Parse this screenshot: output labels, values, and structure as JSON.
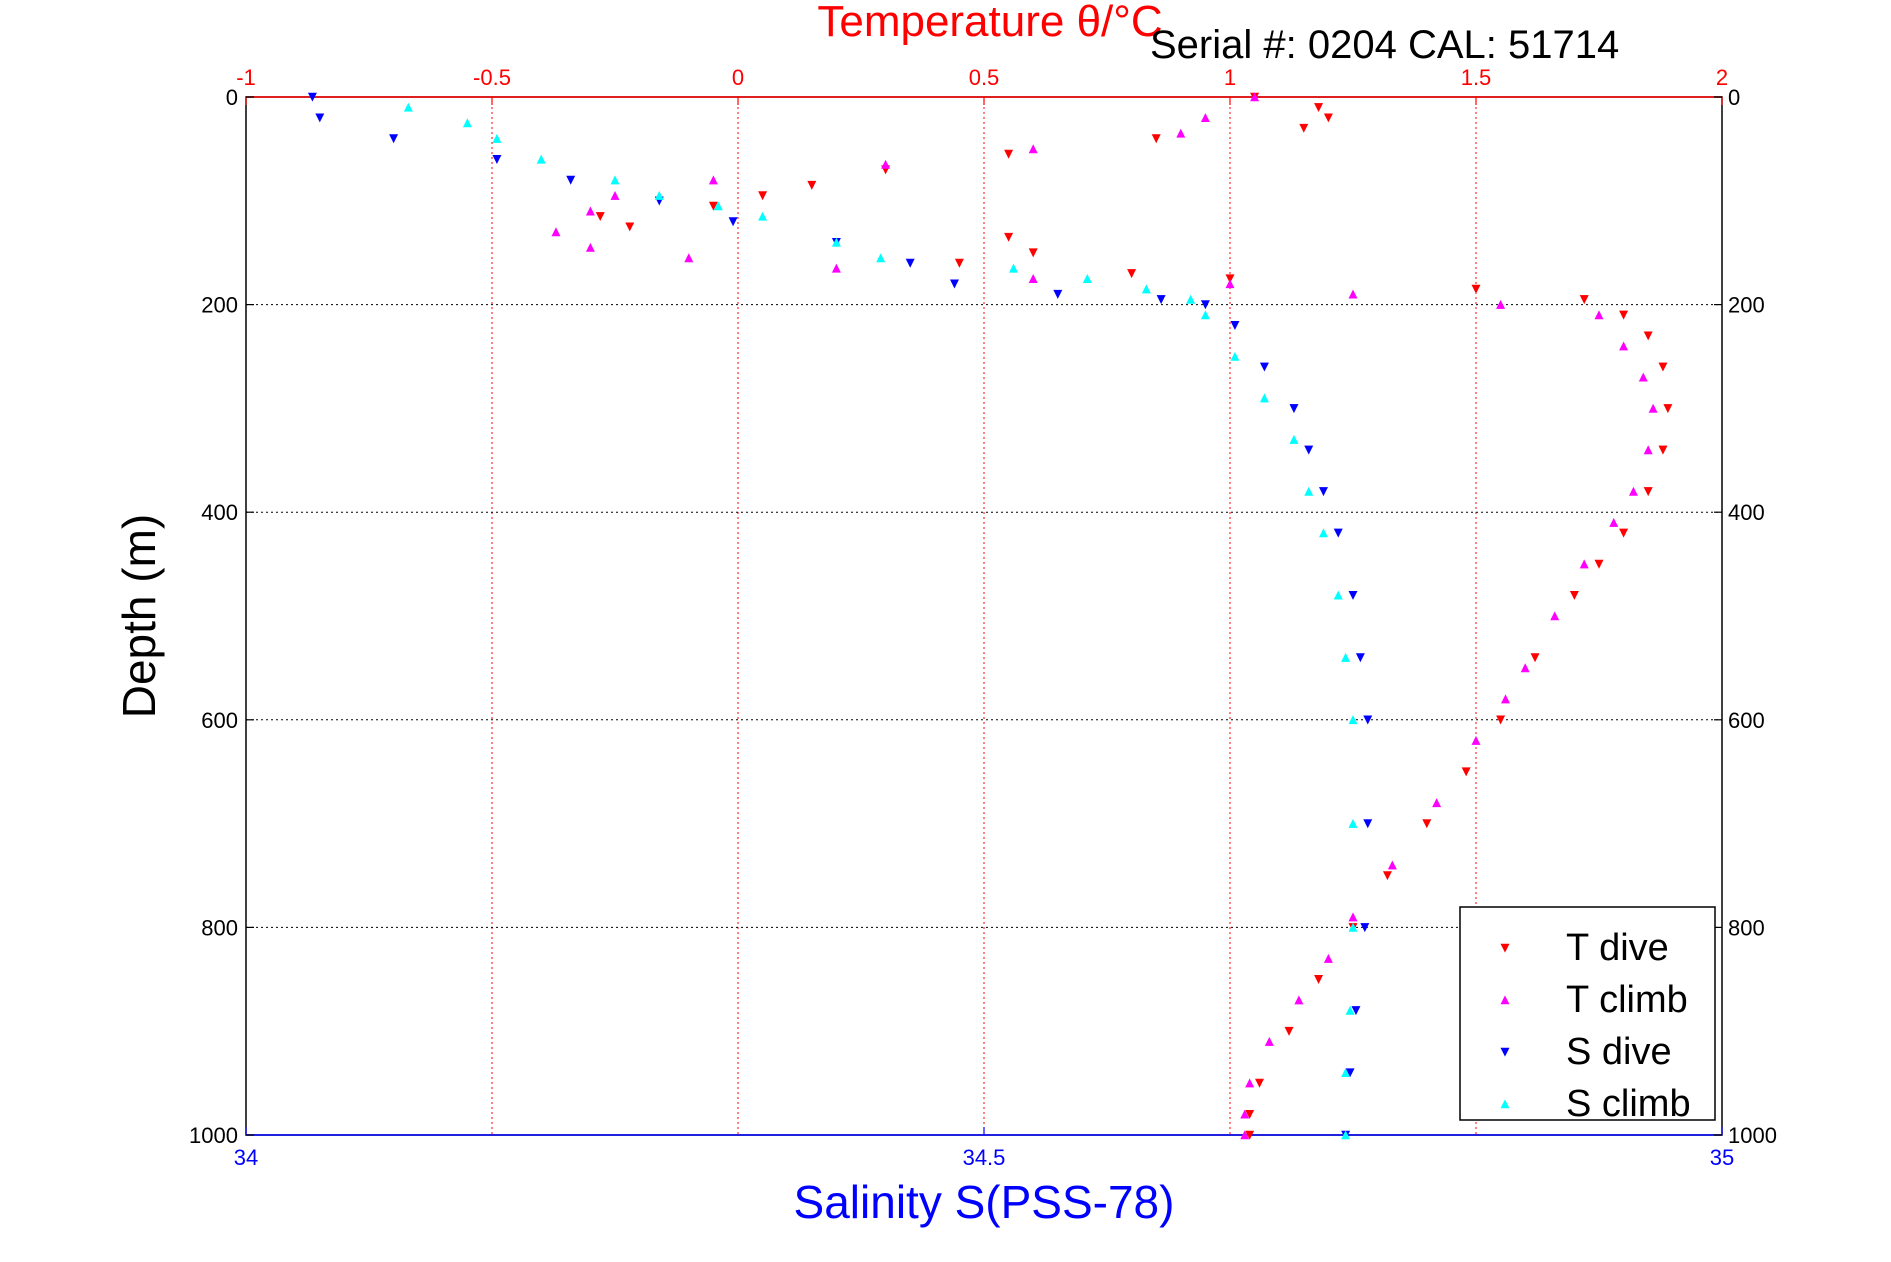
{
  "chart_data": {
    "type": "scatter",
    "title": "Temperature θ/°C",
    "subtitle": "Serial #: 0204   CAL: 51714",
    "xlabel": "Salinity S(PSS-78)",
    "ylabel": "Depth (m)",
    "x_top": {
      "label": "Temperature θ/°C",
      "lim": [
        -1,
        2
      ],
      "ticks": [
        "-1",
        "-0.5",
        "0",
        "0.5",
        "1",
        "1.5",
        "2"
      ],
      "color": "#ff0000"
    },
    "x_bottom": {
      "label": "Salinity S(PSS-78)",
      "lim": [
        34,
        35
      ],
      "ticks": [
        "34",
        "34.5",
        "35"
      ],
      "color": "#0000ff"
    },
    "y": {
      "lim": [
        0,
        1000
      ],
      "inverted": true,
      "ticks": [
        "0",
        "200",
        "400",
        "600",
        "800",
        "1000"
      ]
    },
    "grid": true,
    "legend_position": "bottom-right",
    "series": [
      {
        "name": "T dive",
        "axis": "temperature",
        "color": "#ff0000",
        "marker": "triangle-down",
        "points": [
          [
            1.05,
            0
          ],
          [
            1.18,
            10
          ],
          [
            1.2,
            20
          ],
          [
            1.15,
            30
          ],
          [
            0.85,
            40
          ],
          [
            0.55,
            55
          ],
          [
            0.3,
            70
          ],
          [
            0.15,
            85
          ],
          [
            0.05,
            95
          ],
          [
            -0.05,
            105
          ],
          [
            -0.28,
            115
          ],
          [
            -0.22,
            125
          ],
          [
            0.55,
            135
          ],
          [
            0.6,
            150
          ],
          [
            0.45,
            160
          ],
          [
            0.8,
            170
          ],
          [
            1.0,
            175
          ],
          [
            1.5,
            185
          ],
          [
            1.72,
            195
          ],
          [
            1.8,
            210
          ],
          [
            1.85,
            230
          ],
          [
            1.88,
            260
          ],
          [
            1.89,
            300
          ],
          [
            1.88,
            340
          ],
          [
            1.85,
            380
          ],
          [
            1.8,
            420
          ],
          [
            1.75,
            450
          ],
          [
            1.7,
            480
          ],
          [
            1.62,
            540
          ],
          [
            1.55,
            600
          ],
          [
            1.48,
            650
          ],
          [
            1.4,
            700
          ],
          [
            1.32,
            750
          ],
          [
            1.25,
            800
          ],
          [
            1.18,
            850
          ],
          [
            1.12,
            900
          ],
          [
            1.06,
            950
          ],
          [
            1.04,
            980
          ],
          [
            1.04,
            1000
          ]
        ]
      },
      {
        "name": "T climb",
        "axis": "temperature",
        "color": "#ff00ff",
        "marker": "triangle-up",
        "points": [
          [
            1.05,
            0
          ],
          [
            0.95,
            20
          ],
          [
            0.9,
            35
          ],
          [
            0.6,
            50
          ],
          [
            0.3,
            65
          ],
          [
            -0.05,
            80
          ],
          [
            -0.25,
            95
          ],
          [
            -0.3,
            110
          ],
          [
            -0.37,
            130
          ],
          [
            -0.3,
            145
          ],
          [
            -0.1,
            155
          ],
          [
            0.2,
            165
          ],
          [
            0.6,
            175
          ],
          [
            1.0,
            180
          ],
          [
            1.25,
            190
          ],
          [
            1.55,
            200
          ],
          [
            1.75,
            210
          ],
          [
            1.8,
            240
          ],
          [
            1.84,
            270
          ],
          [
            1.86,
            300
          ],
          [
            1.85,
            340
          ],
          [
            1.82,
            380
          ],
          [
            1.78,
            410
          ],
          [
            1.72,
            450
          ],
          [
            1.66,
            500
          ],
          [
            1.6,
            550
          ],
          [
            1.56,
            580
          ],
          [
            1.5,
            620
          ],
          [
            1.42,
            680
          ],
          [
            1.33,
            740
          ],
          [
            1.25,
            790
          ],
          [
            1.2,
            830
          ],
          [
            1.14,
            870
          ],
          [
            1.08,
            910
          ],
          [
            1.04,
            950
          ],
          [
            1.03,
            980
          ],
          [
            1.03,
            1000
          ]
        ]
      },
      {
        "name": "S dive",
        "axis": "salinity",
        "color": "#0000ff",
        "marker": "triangle-down",
        "points": [
          [
            34.045,
            0
          ],
          [
            34.05,
            20
          ],
          [
            34.1,
            40
          ],
          [
            34.17,
            60
          ],
          [
            34.22,
            80
          ],
          [
            34.28,
            100
          ],
          [
            34.33,
            120
          ],
          [
            34.4,
            140
          ],
          [
            34.45,
            160
          ],
          [
            34.48,
            180
          ],
          [
            34.55,
            190
          ],
          [
            34.62,
            195
          ],
          [
            34.65,
            200
          ],
          [
            34.67,
            220
          ],
          [
            34.69,
            260
          ],
          [
            34.71,
            300
          ],
          [
            34.72,
            340
          ],
          [
            34.73,
            380
          ],
          [
            34.74,
            420
          ],
          [
            34.75,
            480
          ],
          [
            34.755,
            540
          ],
          [
            34.76,
            600
          ],
          [
            34.76,
            700
          ],
          [
            34.758,
            800
          ],
          [
            34.752,
            880
          ],
          [
            34.748,
            940
          ],
          [
            34.745,
            1000
          ]
        ]
      },
      {
        "name": "S climb",
        "axis": "salinity",
        "color": "#00ffff",
        "marker": "triangle-up",
        "points": [
          [
            34.11,
            10
          ],
          [
            34.15,
            25
          ],
          [
            34.17,
            40
          ],
          [
            34.2,
            60
          ],
          [
            34.25,
            80
          ],
          [
            34.28,
            95
          ],
          [
            34.32,
            105
          ],
          [
            34.35,
            115
          ],
          [
            34.4,
            140
          ],
          [
            34.43,
            155
          ],
          [
            34.52,
            165
          ],
          [
            34.57,
            175
          ],
          [
            34.61,
            185
          ],
          [
            34.64,
            195
          ],
          [
            34.65,
            210
          ],
          [
            34.67,
            250
          ],
          [
            34.69,
            290
          ],
          [
            34.71,
            330
          ],
          [
            34.72,
            380
          ],
          [
            34.73,
            420
          ],
          [
            34.74,
            480
          ],
          [
            34.745,
            540
          ],
          [
            34.75,
            600
          ],
          [
            34.75,
            700
          ],
          [
            34.75,
            800
          ],
          [
            34.748,
            880
          ],
          [
            34.745,
            940
          ],
          [
            34.745,
            1000
          ]
        ]
      }
    ]
  }
}
